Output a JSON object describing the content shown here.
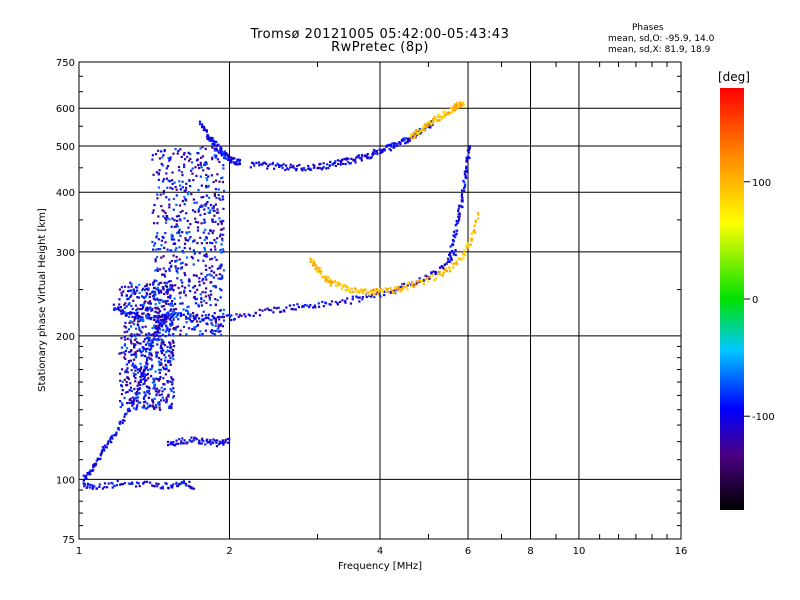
{
  "header": {
    "title": "Tromsø 20121005 05:42:00-05:43:43",
    "subtitle": "RwPretec (8p)"
  },
  "stats": {
    "title": "Phases",
    "o_line": "mean, sd,O: -95.9, 14.0",
    "x_line": "mean, sd,X: 81.9, 18.9"
  },
  "colorbar": {
    "unit": "[deg]",
    "ticks": [
      100,
      0,
      -100
    ],
    "range": [
      -180,
      180
    ]
  },
  "chart_data": {
    "type": "scatter",
    "xlabel": "Frequency [MHz]",
    "ylabel": "Stationary phase Virtual Height [km]",
    "xscale": "log",
    "yscale": "log",
    "xlim": [
      1,
      16
    ],
    "ylim": [
      75,
      750
    ],
    "xticks": [
      1,
      2,
      4,
      6,
      8,
      10,
      16
    ],
    "yticks": [
      75,
      100,
      200,
      300,
      400,
      500,
      600,
      750
    ],
    "grid": true,
    "color_by": "phase (deg)",
    "traces": [
      {
        "x": [
          1.02,
          1.06,
          1.1,
          1.15,
          1.2,
          1.25,
          1.3,
          1.35,
          1.4,
          1.45,
          1.5
        ],
        "y": [
          100,
          105,
          112,
          120,
          128,
          140,
          150,
          170,
          195,
          210,
          222
        ],
        "phase": -100
      },
      {
        "x": [
          1.17,
          1.25,
          1.35,
          1.45,
          1.55,
          1.7,
          1.9,
          2.1,
          2.4,
          2.7,
          3.0,
          3.4,
          3.8,
          4.2,
          4.6,
          5.0,
          5.4,
          5.7
        ],
        "y": [
          230,
          222,
          218,
          218,
          220,
          220,
          218,
          220,
          226,
          230,
          232,
          236,
          242,
          248,
          256,
          266,
          280,
          300
        ],
        "phase": -100
      },
      {
        "x": [
          5.5,
          5.62,
          5.72,
          5.82,
          5.9,
          5.98,
          6.03
        ],
        "y": [
          290,
          320,
          350,
          380,
          420,
          460,
          500
        ],
        "phase": -100
      },
      {
        "x": [
          2.2,
          2.4,
          2.6,
          2.8,
          3.0,
          3.2,
          3.4,
          3.6,
          3.8,
          4.0,
          4.2,
          4.4,
          4.6,
          4.8,
          5.0,
          5.1
        ],
        "y": [
          458,
          455,
          452,
          450,
          452,
          458,
          464,
          470,
          478,
          488,
          498,
          510,
          520,
          535,
          550,
          565
        ],
        "phase": -100
      },
      {
        "x": [
          1.75,
          1.8,
          1.85,
          1.9,
          1.95,
          2.0,
          2.05,
          2.1
        ],
        "y": [
          560,
          530,
          510,
          495,
          480,
          470,
          465,
          462
        ],
        "phase": -100
      },
      {
        "x": [
          2.9,
          3.0,
          3.1,
          3.2,
          3.4,
          3.6,
          3.8,
          4.0,
          4.3,
          4.6,
          5.0,
          5.4,
          5.8,
          6.1,
          6.3
        ],
        "y": [
          290,
          275,
          265,
          258,
          252,
          248,
          246,
          248,
          250,
          255,
          262,
          272,
          290,
          320,
          360
        ],
        "phase": 95
      },
      {
        "x": [
          4.6,
          4.8,
          5.0,
          5.2,
          5.4,
          5.6,
          5.75,
          5.9
        ],
        "y": [
          520,
          540,
          555,
          570,
          585,
          598,
          610,
          620
        ],
        "phase": 95
      },
      {
        "x": [
          1.02,
          1.08,
          1.2,
          1.35,
          1.5,
          1.6,
          1.7
        ],
        "y": [
          97,
          96,
          98,
          98,
          97,
          98,
          97
        ],
        "phase": -100
      },
      {
        "x": [
          1.5,
          1.6,
          1.7,
          1.8,
          1.9,
          2.0
        ],
        "y": [
          118,
          120,
          121,
          120,
          119,
          120
        ],
        "phase": -100
      }
    ],
    "clusters": [
      {
        "x": [
          1.4,
          1.95
        ],
        "y": [
          200,
          500
        ],
        "phase": -100
      },
      {
        "x": [
          1.2,
          1.55
        ],
        "y": [
          140,
          260
        ],
        "phase": -100
      }
    ]
  }
}
